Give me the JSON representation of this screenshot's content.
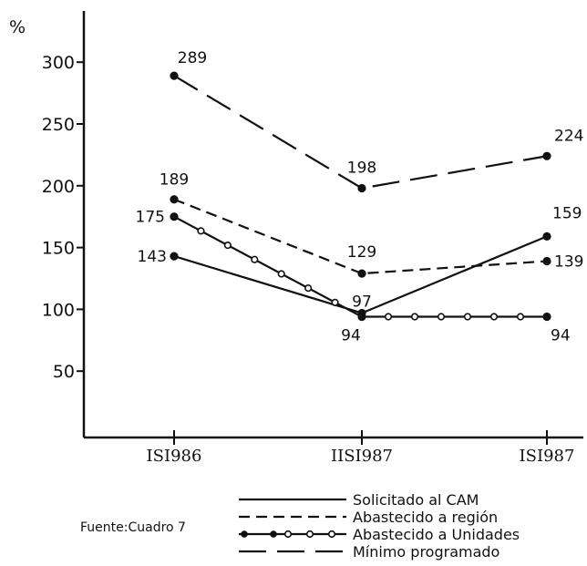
{
  "chart_data": {
    "type": "line",
    "ylabel": "%",
    "ylim": [
      0,
      330
    ],
    "yticks": [
      50,
      100,
      150,
      200,
      250,
      300
    ],
    "ytick_labels": [
      "50",
      "100",
      "150",
      "200",
      "250",
      "300"
    ],
    "categories": [
      "ISI986",
      "IISI987",
      "ISI987"
    ],
    "grid": false,
    "legend_position": "bottom-right",
    "series": [
      {
        "name": "Solicitado al CAM",
        "style": "solid",
        "values": [
          143,
          97,
          159
        ]
      },
      {
        "name": "Abastecido a región",
        "style": "short-dash",
        "values": [
          189,
          129,
          139
        ]
      },
      {
        "name": "Abastecido a Unidades",
        "style": "dot-circle",
        "values": [
          175,
          94,
          94
        ]
      },
      {
        "name": "Mínimo programado",
        "style": "long-dash",
        "values": [
          289,
          198,
          224
        ]
      }
    ],
    "data_labels": [
      {
        "series": 0,
        "point": 0,
        "text": "143"
      },
      {
        "series": 0,
        "point": 1,
        "text": "97"
      },
      {
        "series": 0,
        "point": 2,
        "text": "159"
      },
      {
        "series": 1,
        "point": 0,
        "text": "189"
      },
      {
        "series": 1,
        "point": 1,
        "text": "129"
      },
      {
        "series": 1,
        "point": 2,
        "text": "139"
      },
      {
        "series": 2,
        "point": 0,
        "text": "175"
      },
      {
        "series": 2,
        "point": 1,
        "text": "94"
      },
      {
        "series": 2,
        "point": 2,
        "text": "94"
      },
      {
        "series": 3,
        "point": 0,
        "text": "289"
      },
      {
        "series": 3,
        "point": 1,
        "text": "198"
      },
      {
        "series": 3,
        "point": 2,
        "text": "224"
      }
    ],
    "source_note": "Fuente:Cuadro 7",
    "line_color": "#111111"
  }
}
